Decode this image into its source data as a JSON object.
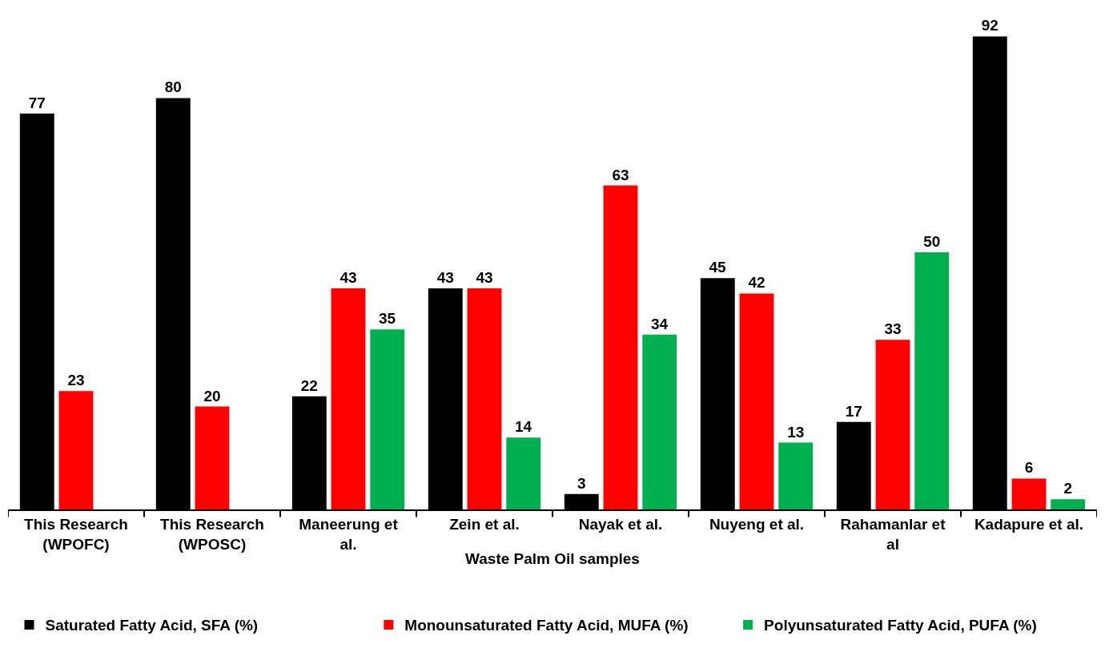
{
  "chart_data": {
    "type": "bar",
    "xlabel": "Waste Palm Oil samples",
    "categories": [
      "This Research\n(WPOFC)",
      "This Research\n(WPOSC)",
      "Maneerung et\nal.",
      "Zein et al.",
      "Nayak et al.",
      "Nuyeng et al.",
      "Rahamanlar et\nal",
      "Kadapure et al."
    ],
    "series": [
      {
        "name": "Saturated Fatty Acid, SFA (%)",
        "color": "#000000",
        "values": [
          77,
          80,
          22,
          43,
          3,
          45,
          17,
          92
        ]
      },
      {
        "name": "Monounsaturated Fatty Acid, MUFA (%)",
        "color": "#ff0000",
        "values": [
          23,
          20,
          43,
          43,
          63,
          42,
          33,
          6
        ]
      },
      {
        "name": "Polyunsaturated Fatty Acid, PUFA (%)",
        "color": "#00b050",
        "values": [
          null,
          null,
          35,
          14,
          34,
          13,
          50,
          2
        ]
      }
    ],
    "data_labels": true,
    "legend": "bottom",
    "tick_labels": "x"
  }
}
